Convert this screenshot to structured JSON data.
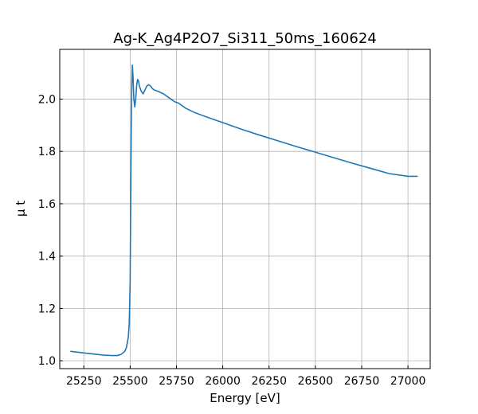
{
  "chart_data": {
    "type": "line",
    "title": "Ag-K_Ag4P2O7_Si311_50ms_160624",
    "xlabel": "Energy [eV]",
    "ylabel": "μ t",
    "xlim": [
      25120,
      27120
    ],
    "ylim": [
      0.97,
      2.19
    ],
    "xticks": [
      25250,
      25500,
      25750,
      26000,
      26250,
      26500,
      26750,
      27000
    ],
    "xtick_labels": [
      "25250",
      "25500",
      "25750",
      "26000",
      "26250",
      "26500",
      "26750",
      "27000"
    ],
    "yticks": [
      1.0,
      1.2,
      1.4,
      1.6,
      1.8,
      2.0
    ],
    "ytick_labels": [
      "1.0",
      "1.2",
      "1.4",
      "1.6",
      "1.8",
      "2.0"
    ],
    "grid": true,
    "line_color": "#1f77b4",
    "series": [
      {
        "name": "",
        "x": [
          25180,
          25250,
          25300,
          25350,
          25400,
          25430,
          25450,
          25470,
          25480,
          25490,
          25495,
          25500,
          25503,
          25506,
          25509,
          25512,
          25516,
          25520,
          25525,
          25530,
          25535,
          25540,
          25545,
          25550,
          25560,
          25570,
          25580,
          25590,
          25600,
          25610,
          25620,
          25630,
          25650,
          25680,
          25700,
          25720,
          25740,
          25760,
          25800,
          25850,
          25900,
          26000,
          26100,
          26200,
          26300,
          26400,
          26500,
          26600,
          26700,
          26800,
          26900,
          27000,
          27050
        ],
        "y": [
          1.036,
          1.03,
          1.026,
          1.022,
          1.02,
          1.02,
          1.024,
          1.035,
          1.05,
          1.09,
          1.14,
          1.3,
          1.6,
          1.88,
          2.05,
          2.13,
          2.08,
          2.0,
          1.97,
          2.0,
          2.05,
          2.075,
          2.07,
          2.05,
          2.03,
          2.02,
          2.035,
          2.05,
          2.055,
          2.05,
          2.04,
          2.035,
          2.03,
          2.02,
          2.01,
          2.0,
          1.99,
          1.985,
          1.965,
          1.948,
          1.935,
          1.91,
          1.885,
          1.862,
          1.84,
          1.818,
          1.797,
          1.776,
          1.755,
          1.735,
          1.715,
          1.705,
          1.705
        ]
      }
    ]
  }
}
